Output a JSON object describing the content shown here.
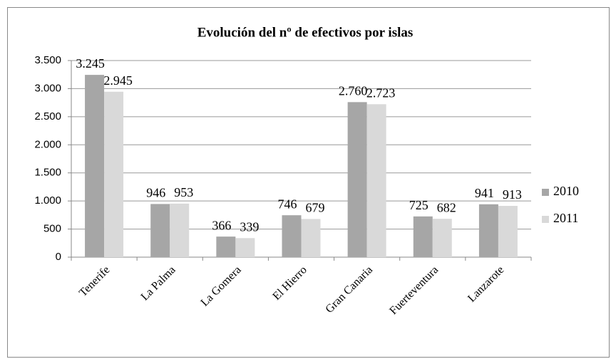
{
  "chart_data": {
    "type": "bar",
    "title": "Evolución del nº de efectivos por islas",
    "categories": [
      "Tenerife",
      "La Palma",
      "La Gomera",
      "El Hierro",
      "Gran Canaria",
      "Fuerteventura",
      "Lanzarote"
    ],
    "series": [
      {
        "name": "2010",
        "color": "#a6a6a6",
        "values": [
          3245,
          946,
          366,
          746,
          2760,
          725,
          941
        ],
        "value_labels": [
          "3.245",
          "946",
          "366",
          "746",
          "2.760",
          "725",
          "941"
        ]
      },
      {
        "name": "2011",
        "color": "#d9d9d9",
        "values": [
          2945,
          953,
          339,
          679,
          2723,
          682,
          913
        ],
        "value_labels": [
          "2.945",
          "953",
          "339",
          "679",
          "2.723",
          "682",
          "913"
        ]
      }
    ],
    "ylim": [
      0,
      3500
    ],
    "yticks": [
      0,
      500,
      {
        "value": 1000,
        "label": "1.000"
      },
      {
        "value": 1500,
        "label": "1.500"
      },
      {
        "value": 2000,
        "label": "2.000"
      },
      {
        "value": 2500,
        "label": "2.500"
      },
      {
        "value": 3000,
        "label": "3.000"
      },
      {
        "value": 3500,
        "label": "3.500"
      }
    ],
    "grid": true,
    "legend": "right"
  }
}
